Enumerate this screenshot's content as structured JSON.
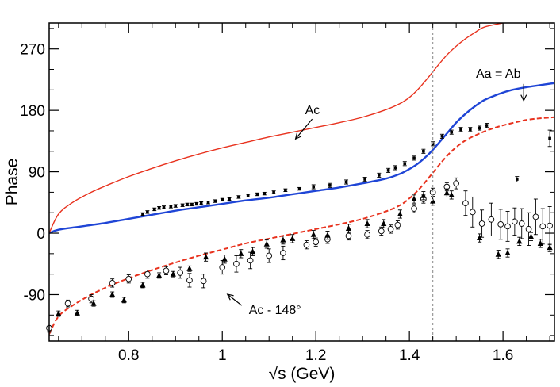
{
  "chart_data": {
    "type": "scatter",
    "xlabel": "√s (GeV)",
    "ylabel": "Phase",
    "xlim": [
      0.63,
      1.71
    ],
    "ylim": [
      -158,
      308
    ],
    "x_ticks": [
      0.8,
      1,
      1.2,
      1.4,
      1.6
    ],
    "x_tick_labels": [
      "0.8",
      "1",
      "1.2",
      "1.4",
      "1.6"
    ],
    "y_ticks": [
      -90,
      0,
      90,
      180,
      270
    ],
    "y_tick_labels": [
      "-90",
      "0",
      "90",
      "180",
      "270"
    ],
    "vline_x": 1.45,
    "lines": [
      {
        "name": "Ac",
        "color": "#e8321e",
        "dash": false,
        "x": [
          0.63,
          0.65,
          0.68,
          0.72,
          0.76,
          0.8,
          0.85,
          0.9,
          0.95,
          1.0,
          1.05,
          1.1,
          1.15,
          1.2,
          1.25,
          1.3,
          1.35,
          1.38,
          1.4,
          1.42,
          1.44,
          1.46,
          1.48,
          1.5,
          1.52,
          1.54,
          1.56,
          1.6
        ],
        "y": [
          0,
          28,
          45,
          60,
          72,
          83,
          95,
          106,
          116,
          125,
          133,
          141,
          148,
          155,
          162,
          170,
          181,
          190,
          199,
          212,
          228,
          245,
          261,
          274,
          285,
          294,
          302,
          308
        ]
      },
      {
        "name": "Aa = Ab",
        "color": "#1f45d6",
        "dash": false,
        "x": [
          0.63,
          0.65,
          0.7,
          0.75,
          0.8,
          0.85,
          0.9,
          0.95,
          1.0,
          1.05,
          1.1,
          1.15,
          1.2,
          1.25,
          1.3,
          1.35,
          1.38,
          1.4,
          1.42,
          1.44,
          1.46,
          1.48,
          1.5,
          1.52,
          1.54,
          1.56,
          1.58,
          1.6,
          1.62,
          1.65,
          1.68,
          1.71
        ],
        "y": [
          0,
          5,
          10,
          15,
          21,
          27,
          33,
          38,
          43,
          48,
          52,
          57,
          62,
          67,
          73,
          80,
          87,
          94,
          103,
          115,
          130,
          146,
          162,
          175,
          186,
          195,
          201,
          206,
          210,
          214,
          217,
          220
        ]
      },
      {
        "name": "Ac - 148°",
        "color": "#e8321e",
        "dash": true,
        "x": [
          0.63,
          0.65,
          0.68,
          0.72,
          0.76,
          0.8,
          0.85,
          0.9,
          0.95,
          1.0,
          1.05,
          1.1,
          1.15,
          1.2,
          1.25,
          1.3,
          1.35,
          1.38,
          1.4,
          1.42,
          1.44,
          1.46,
          1.48,
          1.5,
          1.52,
          1.54,
          1.56,
          1.58,
          1.6,
          1.63,
          1.66,
          1.71
        ],
        "y": [
          -148,
          -122,
          -106,
          -90,
          -77,
          -66,
          -54,
          -43,
          -33,
          -24,
          -15,
          -8,
          -1,
          6,
          13,
          21,
          32,
          41,
          51,
          64,
          80,
          97,
          113,
          126,
          136,
          143,
          149,
          154,
          158,
          163,
          167,
          170
        ]
      }
    ],
    "series": [
      {
        "name": "Black squares",
        "marker": "square",
        "points": [
          [
            0.83,
            28
          ],
          [
            0.84,
            31
          ],
          [
            0.855,
            35
          ],
          [
            0.865,
            37
          ],
          [
            0.875,
            38
          ],
          [
            0.89,
            39
          ],
          [
            0.9,
            40
          ],
          [
            0.915,
            41
          ],
          [
            0.925,
            42
          ],
          [
            0.935,
            42
          ],
          [
            0.945,
            43
          ],
          [
            0.955,
            44
          ],
          [
            0.97,
            45
          ],
          [
            0.985,
            47
          ],
          [
            1.0,
            49
          ],
          [
            1.015,
            50
          ],
          [
            1.035,
            53
          ],
          [
            1.055,
            55
          ],
          [
            1.075,
            57
          ],
          [
            1.09,
            58
          ],
          [
            1.11,
            60
          ],
          [
            1.135,
            63
          ],
          [
            1.165,
            65
          ],
          [
            1.195,
            68
          ],
          [
            1.23,
            70
          ],
          [
            1.265,
            75
          ],
          [
            1.305,
            79
          ],
          [
            1.335,
            85
          ],
          [
            1.355,
            92
          ],
          [
            1.37,
            96
          ],
          [
            1.39,
            102
          ],
          [
            1.41,
            110
          ],
          [
            1.43,
            120
          ],
          [
            1.45,
            131
          ],
          [
            1.47,
            142
          ],
          [
            1.49,
            148
          ],
          [
            1.51,
            152
          ],
          [
            1.53,
            152
          ],
          [
            1.55,
            154
          ],
          [
            1.565,
            158
          ]
        ],
        "err": [
          2,
          2,
          2,
          2,
          2,
          2,
          2,
          2,
          2,
          2,
          2,
          2,
          2,
          2,
          2,
          2,
          2,
          2,
          2,
          2,
          2,
          2,
          2,
          3,
          3,
          3,
          3,
          3,
          3,
          3,
          3,
          3,
          3,
          3,
          3,
          3,
          3,
          3,
          3,
          3
        ]
      },
      {
        "name": "Open circles",
        "marker": "circle",
        "points": [
          [
            0.63,
            -139
          ],
          [
            0.67,
            -103
          ],
          [
            0.72,
            -96
          ],
          [
            0.765,
            -73
          ],
          [
            0.8,
            -67
          ],
          [
            0.84,
            -60
          ],
          [
            0.88,
            -55
          ],
          [
            0.91,
            -58
          ],
          [
            0.93,
            -69
          ],
          [
            0.96,
            -70
          ],
          [
            1.0,
            -50
          ],
          [
            1.03,
            -45
          ],
          [
            1.06,
            -40
          ],
          [
            1.1,
            -33
          ],
          [
            1.13,
            -29
          ],
          [
            1.18,
            -17
          ],
          [
            1.2,
            -13
          ],
          [
            1.225,
            -9
          ],
          [
            1.27,
            -4
          ],
          [
            1.31,
            -2
          ],
          [
            1.34,
            3
          ],
          [
            1.36,
            6
          ],
          [
            1.375,
            12
          ],
          [
            1.41,
            36
          ],
          [
            1.43,
            50
          ],
          [
            1.45,
            60
          ],
          [
            1.48,
            68
          ],
          [
            1.5,
            73
          ],
          [
            1.52,
            44
          ],
          [
            1.535,
            31
          ],
          [
            1.555,
            14
          ],
          [
            1.575,
            20
          ],
          [
            1.595,
            13
          ],
          [
            1.61,
            10
          ],
          [
            1.625,
            17
          ],
          [
            1.64,
            14
          ],
          [
            1.655,
            6
          ],
          [
            1.67,
            24
          ],
          [
            1.685,
            10
          ],
          [
            1.7,
            11
          ]
        ],
        "err": [
          6,
          5,
          6,
          6,
          6,
          6,
          6,
          8,
          10,
          10,
          10,
          12,
          12,
          10,
          10,
          6,
          6,
          6,
          6,
          6,
          6,
          6,
          6,
          6,
          6,
          6,
          6,
          8,
          18,
          22,
          20,
          24,
          22,
          22,
          20,
          22,
          24,
          26,
          26,
          28
        ]
      },
      {
        "name": "Filled triangles",
        "marker": "triangle",
        "points": [
          [
            0.65,
            -118
          ],
          [
            0.69,
            -117
          ],
          [
            0.725,
            -103
          ],
          [
            0.765,
            -90
          ],
          [
            0.79,
            -98
          ],
          [
            0.83,
            -76
          ],
          [
            0.865,
            -62
          ],
          [
            0.895,
            -60
          ],
          [
            0.93,
            -52
          ],
          [
            0.965,
            -35
          ],
          [
            1.005,
            -38
          ],
          [
            1.04,
            -30
          ],
          [
            1.065,
            -27
          ],
          [
            1.095,
            -16
          ],
          [
            1.13,
            -10
          ],
          [
            1.15,
            -8
          ],
          [
            1.195,
            -2
          ],
          [
            1.225,
            -3
          ],
          [
            1.27,
            7
          ],
          [
            1.31,
            14
          ],
          [
            1.345,
            14
          ],
          [
            1.38,
            28
          ],
          [
            1.41,
            50
          ],
          [
            1.43,
            55
          ],
          [
            1.45,
            47
          ],
          [
            1.48,
            59
          ],
          [
            1.49,
            56
          ],
          [
            1.55,
            -7
          ],
          [
            1.59,
            -31
          ],
          [
            1.61,
            -29
          ],
          [
            1.635,
            -12
          ],
          [
            1.66,
            -5
          ],
          [
            1.68,
            -15
          ],
          [
            1.7,
            -21
          ]
        ],
        "err": [
          4,
          4,
          4,
          4,
          4,
          4,
          4,
          4,
          4,
          6,
          6,
          6,
          6,
          6,
          6,
          6,
          6,
          6,
          6,
          6,
          6,
          6,
          6,
          6,
          6,
          6,
          6,
          6,
          6,
          6,
          6,
          6,
          6,
          6
        ]
      },
      {
        "name": "Isolated points",
        "marker": "square",
        "points": [
          [
            1.63,
            79
          ],
          [
            1.7,
            139
          ]
        ],
        "err": [
          4,
          12
        ]
      }
    ],
    "annotations": [
      {
        "text": "Ac",
        "x": 1.16,
        "y": 180
      },
      {
        "text": "Aa = Ab",
        "x": 1.59,
        "y": 235
      },
      {
        "text": "Ac - 148°",
        "x": 1.05,
        "y": -100
      }
    ]
  }
}
